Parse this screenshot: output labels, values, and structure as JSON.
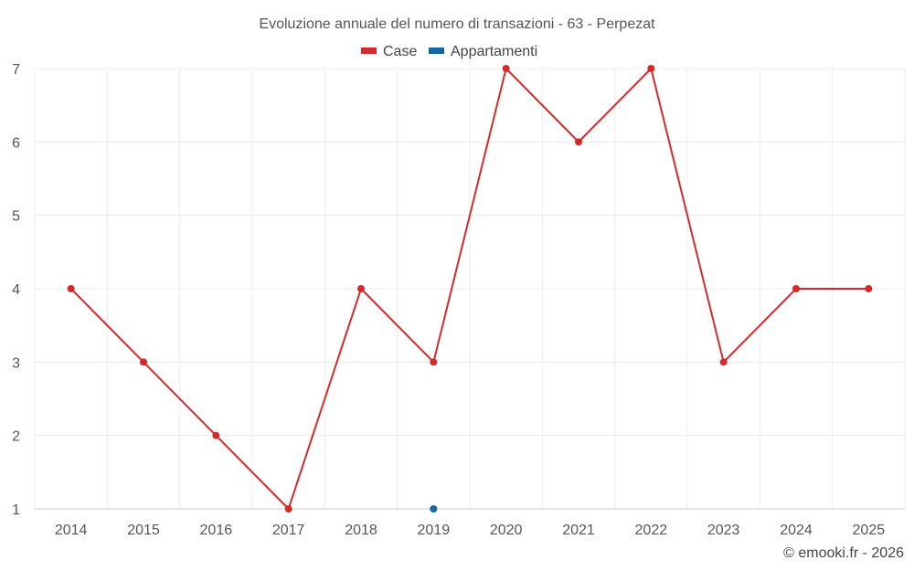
{
  "chart_data": {
    "type": "line",
    "title": "Evoluzione annuale del numero di transazioni - 63 - Perpezat",
    "categories": [
      "2014",
      "2015",
      "2016",
      "2017",
      "2018",
      "2019",
      "2020",
      "2021",
      "2022",
      "2023",
      "2024",
      "2025"
    ],
    "series": [
      {
        "name": "Case",
        "color": "#d42a2a",
        "values": [
          4,
          3,
          2,
          1,
          4,
          3,
          7,
          6,
          7,
          3,
          4,
          4
        ]
      },
      {
        "name": "Appartamenti",
        "color": "#1565a0",
        "values": [
          null,
          null,
          null,
          null,
          null,
          1,
          null,
          null,
          null,
          null,
          null,
          null
        ]
      }
    ],
    "ylim": [
      1,
      7
    ],
    "yticks": [
      1,
      2,
      3,
      4,
      5,
      6,
      7
    ],
    "grid": true,
    "legend_position": "top-center",
    "xlabel": "",
    "ylabel": ""
  },
  "credit": "© emooki.fr - 2026"
}
